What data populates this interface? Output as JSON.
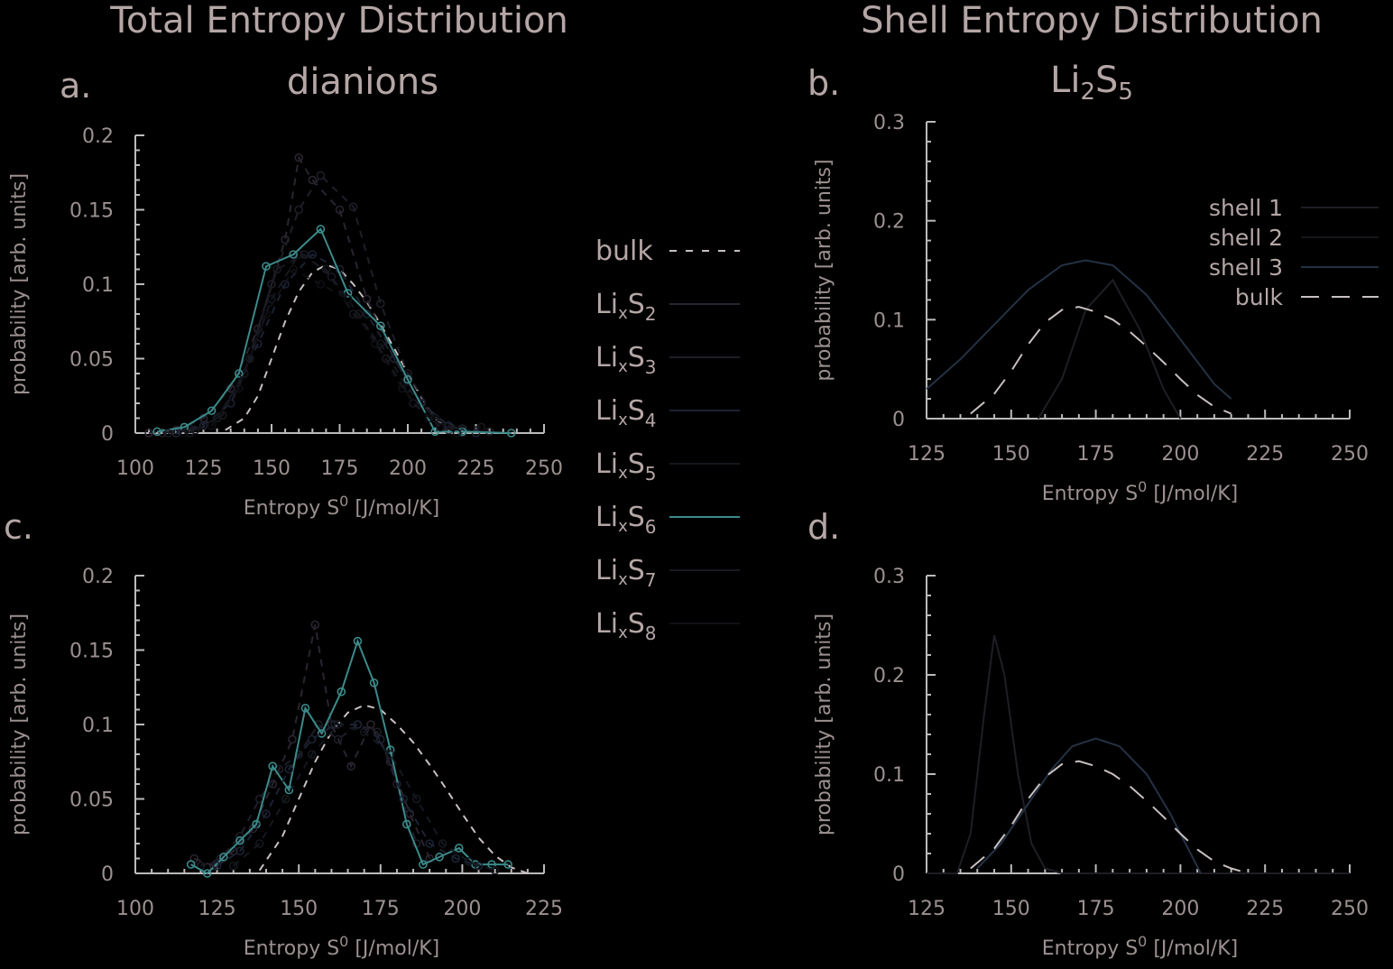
{
  "figure": {
    "title_left": "Total Entropy Distribution",
    "title_right": "Shell Entropy Distribution",
    "subtitle_left": "dianions",
    "subtitle_right": {
      "base": "Li",
      "sub1": "2",
      "mid": "S",
      "sub2": "5"
    }
  },
  "colors": {
    "bulk": "#c8c0c0",
    "LixS2": "#2a2430",
    "LixS3": "#1e1e28",
    "LixS4": "#1c2233",
    "LixS5": "#14181e",
    "LixS6": "#3c8a8a",
    "LixS7": "#181820",
    "LixS8": "#101014",
    "shell1": "#1e1e24",
    "shell2": "#16161a",
    "shell3": "#243244"
  },
  "legend_main": [
    {
      "key": "bulk",
      "label": "bulk",
      "sub": ""
    },
    {
      "key": "LixS2",
      "label": "Li",
      "x": "x",
      "s": "S",
      "sub": "2"
    },
    {
      "key": "LixS3",
      "label": "Li",
      "x": "x",
      "s": "S",
      "sub": "3"
    },
    {
      "key": "LixS4",
      "label": "Li",
      "x": "x",
      "s": "S",
      "sub": "4"
    },
    {
      "key": "LixS5",
      "label": "Li",
      "x": "x",
      "s": "S",
      "sub": "5"
    },
    {
      "key": "LixS6",
      "label": "Li",
      "x": "x",
      "s": "S",
      "sub": "6"
    },
    {
      "key": "LixS7",
      "label": "Li",
      "x": "x",
      "s": "S",
      "sub": "7"
    },
    {
      "key": "LixS8",
      "label": "Li",
      "x": "x",
      "s": "S",
      "sub": "8"
    }
  ],
  "chart_data": [
    {
      "id": "a",
      "letter": "a.",
      "type": "line",
      "xlabel": "Entropy S",
      "xlabel_sup": "0",
      "xlabel_unit": " [J/mol/K]",
      "ylabel": "probability [arb. units]",
      "xlim": [
        100,
        250
      ],
      "ylim": [
        0,
        0.2
      ],
      "xticks": [
        "100",
        "125",
        "150",
        "175",
        "200",
        "225",
        "250"
      ],
      "yticks": [
        "0",
        "0.05",
        "0.1",
        "0.15",
        "0.2"
      ],
      "series": [
        {
          "key": "bulk",
          "style": "dash",
          "markers": false,
          "x": [
            133,
            140,
            145,
            150,
            155,
            160,
            165,
            170,
            175,
            180,
            185,
            190,
            195,
            200,
            205,
            210,
            215
          ],
          "y": [
            0.002,
            0.01,
            0.025,
            0.05,
            0.075,
            0.095,
            0.108,
            0.113,
            0.11,
            0.1,
            0.088,
            0.073,
            0.057,
            0.04,
            0.024,
            0.01,
            0.002
          ]
        },
        {
          "key": "LixS2",
          "style": "dash",
          "markers": true,
          "x": [
            105,
            115,
            125,
            135,
            145,
            155,
            160,
            165,
            175,
            185,
            195,
            205,
            215
          ],
          "y": [
            0,
            0.002,
            0.01,
            0.03,
            0.07,
            0.13,
            0.185,
            0.17,
            0.15,
            0.09,
            0.05,
            0.02,
            0.002
          ]
        },
        {
          "key": "LixS3",
          "style": "dash",
          "markers": true,
          "x": [
            110,
            120,
            130,
            140,
            150,
            160,
            168,
            180,
            190,
            200,
            210,
            220,
            230
          ],
          "y": [
            0,
            0.003,
            0.01,
            0.04,
            0.1,
            0.15,
            0.173,
            0.152,
            0.087,
            0.04,
            0.01,
            0.003,
            0.001
          ]
        },
        {
          "key": "LixS4",
          "style": "dash",
          "markers": true,
          "x": [
            115,
            125,
            135,
            145,
            155,
            165,
            175,
            185,
            195,
            205,
            215,
            225
          ],
          "y": [
            0,
            0.005,
            0.02,
            0.06,
            0.1,
            0.12,
            0.11,
            0.08,
            0.05,
            0.02,
            0.005,
            0
          ]
        },
        {
          "key": "LixS5",
          "style": "dash",
          "markers": true,
          "x": [
            120,
            130,
            140,
            150,
            160,
            170,
            180,
            190,
            200,
            210,
            220
          ],
          "y": [
            0,
            0.01,
            0.04,
            0.09,
            0.12,
            0.11,
            0.08,
            0.06,
            0.03,
            0.01,
            0
          ]
        },
        {
          "key": "LixS6",
          "style": "solid",
          "markers": true,
          "x": [
            108,
            118,
            128,
            138,
            148,
            158,
            168,
            178,
            190,
            200,
            210,
            220,
            238
          ],
          "y": [
            0.001,
            0.004,
            0.015,
            0.04,
            0.112,
            0.12,
            0.137,
            0.094,
            0.072,
            0.036,
            0.001,
            0.001,
            0
          ]
        },
        {
          "key": "LixS7",
          "style": "dash",
          "markers": true,
          "x": [
            112,
            122,
            132,
            142,
            152,
            162,
            172,
            182,
            192,
            202,
            212,
            227
          ],
          "y": [
            0,
            0.002,
            0.012,
            0.05,
            0.11,
            0.12,
            0.105,
            0.08,
            0.05,
            0.02,
            0.004,
            0.004
          ]
        },
        {
          "key": "LixS8",
          "style": "dash",
          "markers": true,
          "x": [
            118,
            128,
            138,
            148,
            158,
            168,
            178,
            188,
            198,
            208,
            218
          ],
          "y": [
            0,
            0.005,
            0.03,
            0.08,
            0.11,
            0.1,
            0.09,
            0.06,
            0.03,
            0.01,
            0
          ]
        }
      ]
    },
    {
      "id": "b",
      "letter": "b.",
      "type": "line",
      "xlabel": "Entropy S",
      "xlabel_sup": "0",
      "xlabel_unit": " [J/mol/K]",
      "ylabel": "probability [arb. units]",
      "xlim": [
        125,
        250
      ],
      "ylim": [
        0,
        0.3
      ],
      "xticks": [
        "125",
        "150",
        "175",
        "200",
        "225",
        "250"
      ],
      "yticks": [
        "0",
        "0.1",
        "0.2",
        "0.3"
      ],
      "legend": [
        {
          "key": "shell1",
          "label": "shell 1",
          "style": "solid"
        },
        {
          "key": "shell2",
          "label": "shell 2",
          "style": "solid"
        },
        {
          "key": "shell3",
          "label": "shell 3",
          "style": "solid"
        },
        {
          "key": "bulk",
          "label": "bulk",
          "style": "longdash"
        }
      ],
      "series": [
        {
          "key": "shell3",
          "style": "solid",
          "x": [
            125,
            135,
            145,
            155,
            165,
            172,
            180,
            190,
            200,
            210,
            215
          ],
          "y": [
            0.03,
            0.06,
            0.095,
            0.13,
            0.155,
            0.16,
            0.155,
            0.125,
            0.08,
            0.035,
            0.02
          ]
        },
        {
          "key": "shell1",
          "style": "solid",
          "x": [
            158,
            165,
            172,
            180,
            188,
            195,
            200
          ],
          "y": [
            0,
            0.04,
            0.11,
            0.14,
            0.09,
            0.03,
            0
          ]
        },
        {
          "key": "bulk",
          "style": "longdash",
          "x": [
            138,
            145,
            150,
            155,
            160,
            165,
            170,
            175,
            180,
            185,
            190,
            195,
            200,
            205,
            210,
            215
          ],
          "y": [
            0.005,
            0.025,
            0.048,
            0.075,
            0.097,
            0.11,
            0.113,
            0.108,
            0.1,
            0.088,
            0.073,
            0.057,
            0.04,
            0.024,
            0.012,
            0.005
          ]
        }
      ]
    },
    {
      "id": "c",
      "letter": "c.",
      "type": "line",
      "xlabel": "Entropy S",
      "xlabel_sup": "0",
      "xlabel_unit": " [J/mol/K]",
      "ylabel": "probability [arb. units]",
      "xlim": [
        100,
        225
      ],
      "ylim": [
        0,
        0.2
      ],
      "xticks": [
        "100",
        "125",
        "150",
        "175",
        "200",
        "225"
      ],
      "yticks": [
        "0",
        "0.05",
        "0.1",
        "0.15",
        "0.2"
      ],
      "series": [
        {
          "key": "bulk",
          "style": "dash",
          "markers": false,
          "x": [
            138,
            145,
            150,
            155,
            160,
            165,
            170,
            175,
            180,
            185,
            190,
            195,
            200,
            205,
            210,
            215,
            220
          ],
          "y": [
            0.002,
            0.025,
            0.05,
            0.075,
            0.095,
            0.108,
            0.113,
            0.11,
            0.1,
            0.088,
            0.073,
            0.057,
            0.04,
            0.024,
            0.012,
            0.004,
            0
          ]
        },
        {
          "key": "LixS2",
          "style": "dash",
          "markers": true,
          "x": [
            118,
            124,
            130,
            136,
            142,
            148,
            155,
            160,
            166,
            172,
            178,
            184,
            190
          ],
          "y": [
            0.01,
            0.005,
            0.015,
            0.03,
            0.06,
            0.09,
            0.167,
            0.1,
            0.072,
            0.1,
            0.075,
            0.04,
            0.01
          ]
        },
        {
          "key": "LixS3",
          "style": "dash",
          "markers": true,
          "x": [
            120,
            126,
            132,
            138,
            144,
            150,
            156,
            162,
            168,
            174,
            180,
            186
          ],
          "y": [
            0.005,
            0.01,
            0.025,
            0.05,
            0.07,
            0.08,
            0.1,
            0.09,
            0.1,
            0.095,
            0.06,
            0.02
          ]
        },
        {
          "key": "LixS6",
          "style": "solid",
          "markers": true,
          "x": [
            117,
            122,
            127,
            132,
            137,
            142,
            147,
            152,
            157,
            163,
            168,
            173,
            178,
            183,
            188,
            193,
            199,
            204,
            209,
            214
          ],
          "y": [
            0.006,
            0,
            0.011,
            0.022,
            0.033,
            0.072,
            0.056,
            0.111,
            0.094,
            0.122,
            0.156,
            0.128,
            0.083,
            0.033,
            0.006,
            0.011,
            0.017,
            0.006,
            0.006,
            0.006
          ]
        },
        {
          "key": "LixS4",
          "style": "dash",
          "markers": true,
          "x": [
            125,
            132,
            140,
            147,
            154,
            161,
            168,
            175,
            182,
            190,
            198,
            205
          ],
          "y": [
            0.005,
            0.015,
            0.04,
            0.07,
            0.09,
            0.1,
            0.1,
            0.09,
            0.05,
            0.02,
            0.01,
            0.005
          ]
        },
        {
          "key": "LixS5",
          "style": "dash",
          "markers": true,
          "x": [
            130,
            138,
            146,
            154,
            162,
            170,
            178,
            186,
            194,
            202,
            210
          ],
          "y": [
            0.005,
            0.02,
            0.05,
            0.08,
            0.1,
            0.095,
            0.08,
            0.05,
            0.02,
            0.008,
            0.002
          ]
        }
      ]
    },
    {
      "id": "d",
      "letter": "d.",
      "type": "line",
      "xlabel": "Entropy S",
      "xlabel_sup": "0",
      "xlabel_unit": " [J/mol/K]",
      "ylabel": "probability [arb. units]",
      "xlim": [
        125,
        250
      ],
      "ylim": [
        0,
        0.3
      ],
      "xticks": [
        "125",
        "150",
        "175",
        "200",
        "225",
        "250"
      ],
      "yticks": [
        "0",
        "0.1",
        "0.2",
        "0.3"
      ],
      "series": [
        {
          "key": "shell1",
          "style": "solid",
          "x": [
            125,
            134,
            138,
            142,
            145,
            148,
            152,
            156,
            160,
            165,
            170,
            250
          ],
          "y": [
            0,
            0,
            0.04,
            0.16,
            0.24,
            0.2,
            0.1,
            0.03,
            0.005,
            0,
            0,
            0
          ]
        },
        {
          "key": "shell3",
          "style": "solid",
          "x": [
            140,
            147,
            155,
            162,
            168,
            175,
            182,
            190,
            197,
            203,
            206
          ],
          "y": [
            0.005,
            0.03,
            0.07,
            0.105,
            0.128,
            0.136,
            0.128,
            0.1,
            0.06,
            0.02,
            0
          ]
        },
        {
          "key": "bulk",
          "style": "longdash",
          "x": [
            138,
            145,
            150,
            155,
            160,
            165,
            170,
            175,
            180,
            185,
            190,
            195,
            200,
            205,
            210,
            215,
            220
          ],
          "y": [
            0.005,
            0.025,
            0.048,
            0.075,
            0.097,
            0.11,
            0.113,
            0.108,
            0.1,
            0.088,
            0.073,
            0.057,
            0.04,
            0.024,
            0.012,
            0.005,
            0
          ]
        }
      ]
    }
  ]
}
